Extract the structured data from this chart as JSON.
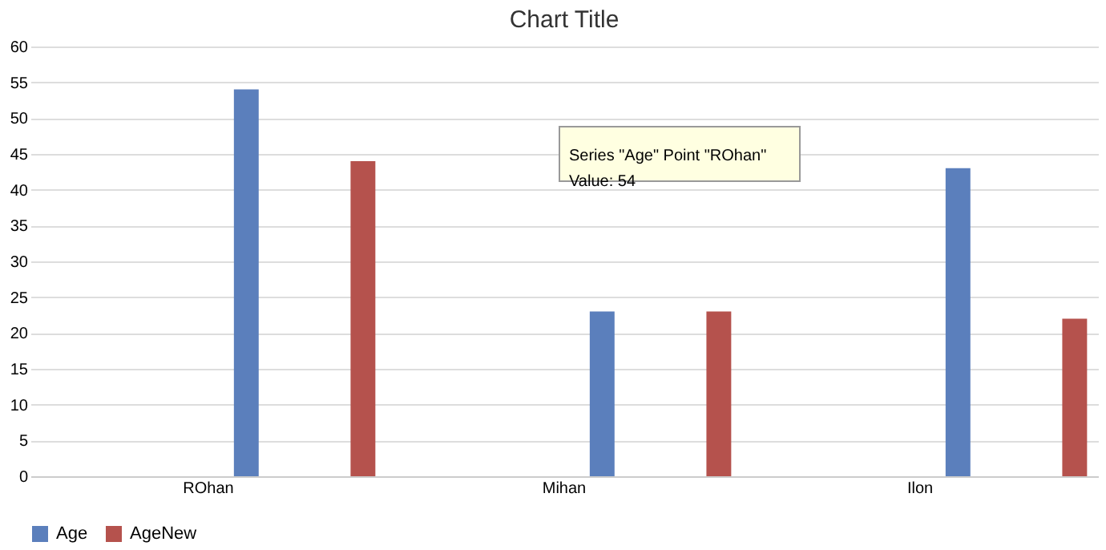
{
  "chart_data": {
    "type": "bar",
    "title": "Chart Title",
    "categories": [
      "ROhan",
      "Mihan",
      "Ilon"
    ],
    "series": [
      {
        "name": "Age",
        "color": "#5b7fbc",
        "values": [
          54,
          23,
          43
        ]
      },
      {
        "name": "AgeNew",
        "color": "#b5524d",
        "values": [
          44,
          23,
          22
        ]
      }
    ],
    "ylim": [
      0,
      60
    ],
    "yticks": [
      0,
      5,
      10,
      15,
      20,
      25,
      30,
      35,
      40,
      45,
      50,
      55,
      60
    ],
    "grid": "y",
    "legend": "bottom",
    "annotations": [
      "Series \"Age\" Point \"ROhan\"",
      "Value: 54"
    ]
  }
}
